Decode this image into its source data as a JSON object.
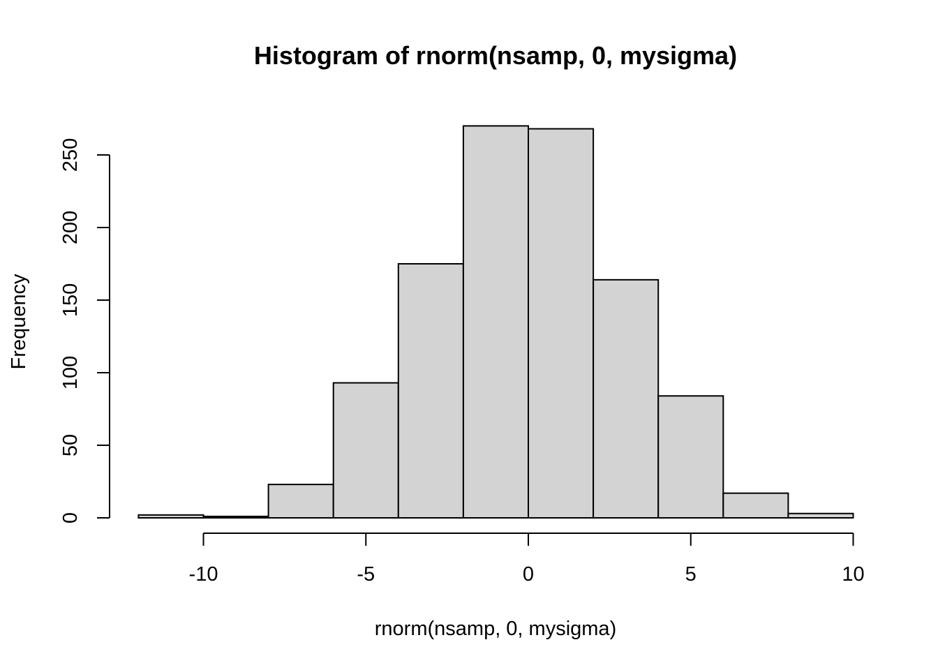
{
  "chart_data": {
    "type": "bar",
    "title": "Histogram of rnorm(nsamp, 0, mysigma)",
    "xlabel": "rnorm(nsamp, 0, mysigma)",
    "ylabel": "Frequency",
    "bins": [
      {
        "x0": -12,
        "x1": -10,
        "count": 2
      },
      {
        "x0": -10,
        "x1": -8,
        "count": 1
      },
      {
        "x0": -8,
        "x1": -6,
        "count": 23
      },
      {
        "x0": -6,
        "x1": -4,
        "count": 93
      },
      {
        "x0": -4,
        "x1": -2,
        "count": 175
      },
      {
        "x0": -2,
        "x1": 0,
        "count": 270
      },
      {
        "x0": 0,
        "x1": 2,
        "count": 268
      },
      {
        "x0": 2,
        "x1": 4,
        "count": 164
      },
      {
        "x0": 4,
        "x1": 6,
        "count": 84
      },
      {
        "x0": 6,
        "x1": 8,
        "count": 17
      },
      {
        "x0": 8,
        "x1": 10,
        "count": 3
      }
    ],
    "xticks": [
      -10,
      -5,
      0,
      5,
      10
    ],
    "xtick_labels": [
      "-10",
      "-5",
      "0",
      "5",
      "10"
    ],
    "yticks": [
      0,
      50,
      100,
      150,
      200,
      250
    ],
    "ytick_labels": [
      "0",
      "50",
      "100",
      "150",
      "200",
      "250"
    ],
    "xlim": [
      -12,
      10
    ],
    "ylim": [
      0,
      270
    ],
    "bar_fill": "#d3d3d3",
    "bar_stroke": "#000000",
    "grid": false
  }
}
